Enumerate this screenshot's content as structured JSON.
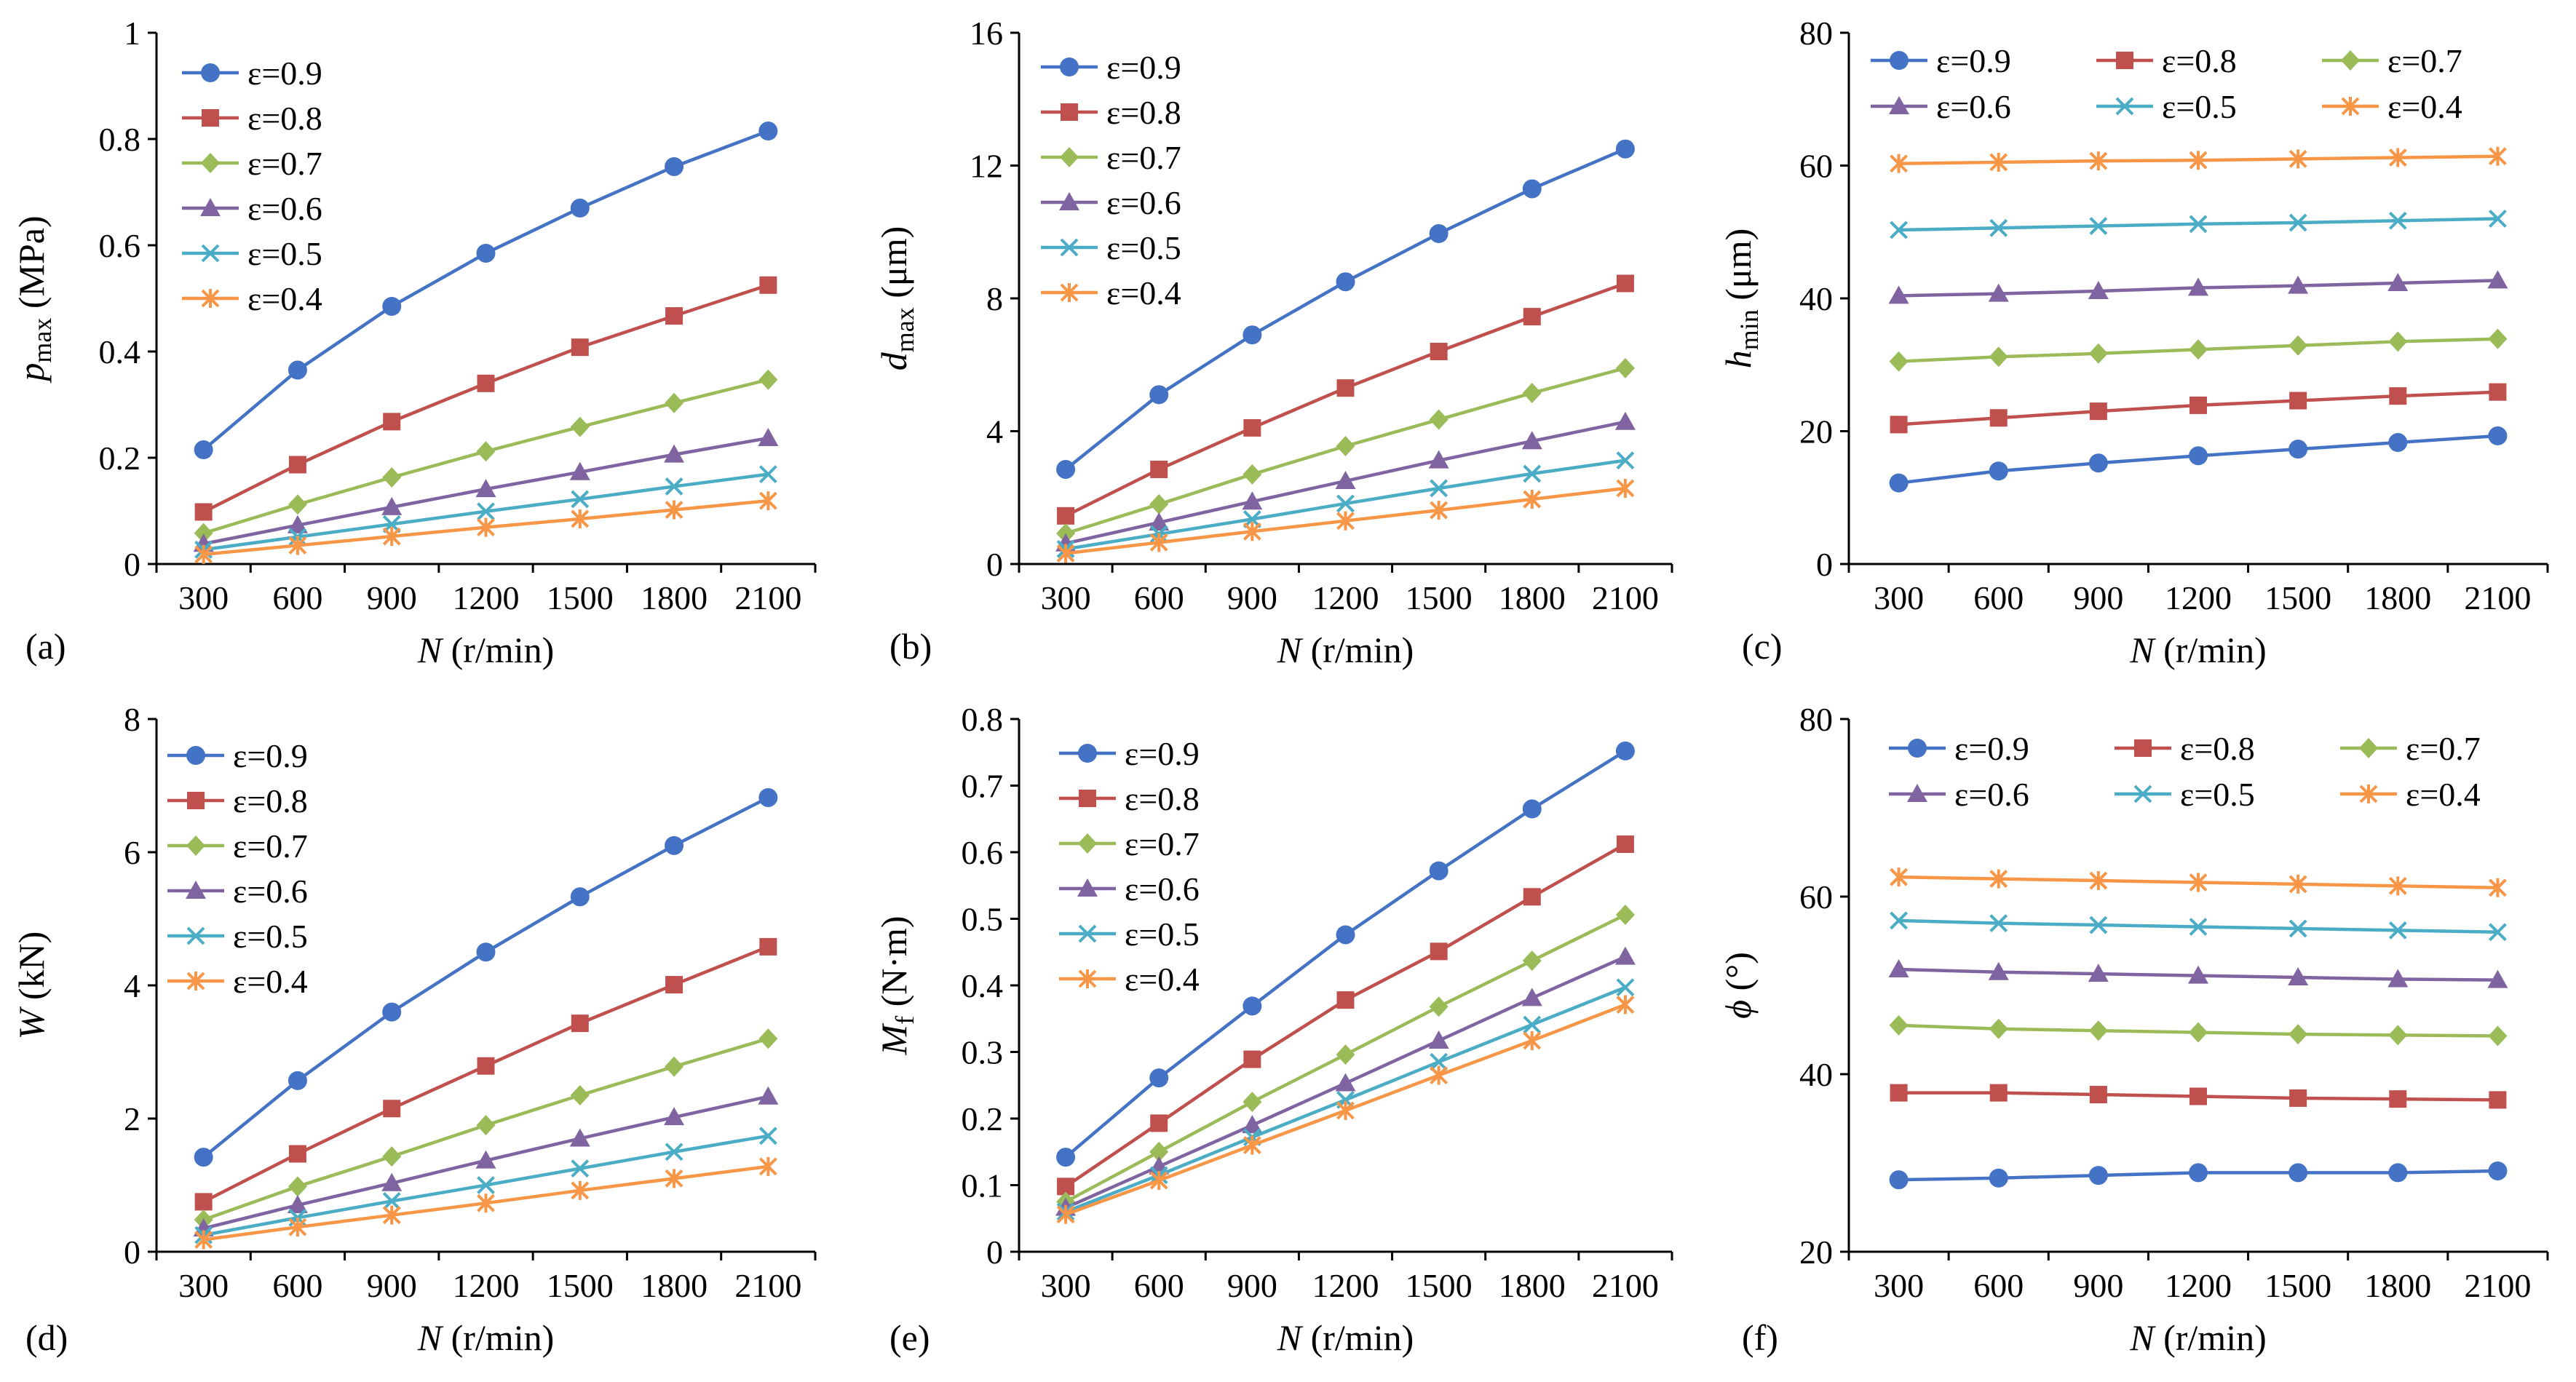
{
  "colors": {
    "e09": "#4472C4",
    "e08": "#C0504D",
    "e07": "#9BBB59",
    "e06": "#8064A2",
    "e05": "#4BACC6",
    "e04": "#F79646",
    "axis": "#000000"
  },
  "chart_data": [
    {
      "type": "line",
      "panel_label": "(a)",
      "categories": [
        "300",
        "600",
        "900",
        "1200",
        "1500",
        "1800",
        "2100"
      ],
      "xlabel": {
        "italic": "N",
        "rest": " (r/min)"
      },
      "ylabel": {
        "italic": "p",
        "sub": "max",
        "rest": " (MPa)"
      },
      "ylim": [
        0,
        1
      ],
      "yticks": [
        {
          "v": 0,
          "label": "0"
        },
        {
          "v": 0.2,
          "label": "0.2"
        },
        {
          "v": 0.4,
          "label": "0.4"
        },
        {
          "v": 0.6,
          "label": "0.6"
        },
        {
          "v": 0.8,
          "label": "0.8"
        },
        {
          "v": 1,
          "label": "1"
        }
      ],
      "legend_placement": "top-left",
      "grid": false,
      "series": [
        {
          "name": "ε=0.9",
          "marker": "circle",
          "color": "#4472C4",
          "values": [
            0.215,
            0.365,
            0.485,
            0.585,
            0.67,
            0.748,
            0.815
          ]
        },
        {
          "name": "ε=0.8",
          "marker": "square",
          "color": "#C0504D",
          "values": [
            0.098,
            0.187,
            0.268,
            0.34,
            0.408,
            0.467,
            0.525
          ]
        },
        {
          "name": "ε=0.7",
          "marker": "diamond",
          "color": "#9BBB59",
          "values": [
            0.058,
            0.112,
            0.163,
            0.212,
            0.258,
            0.303,
            0.347
          ]
        },
        {
          "name": "ε=0.6",
          "marker": "triangle",
          "color": "#8064A2",
          "values": [
            0.038,
            0.073,
            0.107,
            0.141,
            0.173,
            0.206,
            0.237
          ]
        },
        {
          "name": "ε=0.5",
          "marker": "x",
          "color": "#4BACC6",
          "values": [
            0.027,
            0.051,
            0.075,
            0.099,
            0.122,
            0.146,
            0.169
          ]
        },
        {
          "name": "ε=0.4",
          "marker": "star",
          "color": "#F79646",
          "values": [
            0.018,
            0.035,
            0.052,
            0.069,
            0.085,
            0.102,
            0.119
          ]
        }
      ]
    },
    {
      "type": "line",
      "panel_label": "(b)",
      "categories": [
        "300",
        "600",
        "900",
        "1200",
        "1500",
        "1800",
        "2100"
      ],
      "xlabel": {
        "italic": "N",
        "rest": " (r/min)"
      },
      "ylabel": {
        "italic": "d",
        "sub": "max",
        "rest": " (μm)"
      },
      "ylim": [
        0,
        16
      ],
      "yticks": [
        {
          "v": 0,
          "label": "0"
        },
        {
          "v": 4,
          "label": "4"
        },
        {
          "v": 8,
          "label": "8"
        },
        {
          "v": 12,
          "label": "12"
        },
        {
          "v": 16,
          "label": "16"
        }
      ],
      "legend_placement": "top-left",
      "grid": false,
      "series": [
        {
          "name": "ε=0.9",
          "marker": "circle",
          "color": "#4472C4",
          "values": [
            2.85,
            5.1,
            6.9,
            8.5,
            9.95,
            11.3,
            12.5
          ]
        },
        {
          "name": "ε=0.8",
          "marker": "square",
          "color": "#C0504D",
          "values": [
            1.45,
            2.85,
            4.1,
            5.3,
            6.4,
            7.45,
            8.45
          ]
        },
        {
          "name": "ε=0.7",
          "marker": "diamond",
          "color": "#9BBB59",
          "values": [
            0.92,
            1.8,
            2.7,
            3.55,
            4.35,
            5.15,
            5.9
          ]
        },
        {
          "name": "ε=0.6",
          "marker": "triangle",
          "color": "#8064A2",
          "values": [
            0.62,
            1.25,
            1.88,
            2.5,
            3.12,
            3.7,
            4.28
          ]
        },
        {
          "name": "ε=0.5",
          "marker": "x",
          "color": "#4BACC6",
          "values": [
            0.45,
            0.9,
            1.35,
            1.82,
            2.28,
            2.72,
            3.12
          ]
        },
        {
          "name": "ε=0.4",
          "marker": "star",
          "color": "#F79646",
          "values": [
            0.32,
            0.65,
            0.98,
            1.3,
            1.62,
            1.95,
            2.28
          ]
        }
      ]
    },
    {
      "type": "line",
      "panel_label": "(c)",
      "categories": [
        "300",
        "600",
        "900",
        "1200",
        "1500",
        "1800",
        "2100"
      ],
      "xlabel": {
        "italic": "N",
        "rest": " (r/min)"
      },
      "ylabel": {
        "italic": "h",
        "sub": "min",
        "rest": " (μm)"
      },
      "ylim": [
        0,
        80
      ],
      "yticks": [
        {
          "v": 0,
          "label": "0"
        },
        {
          "v": 20,
          "label": "20"
        },
        {
          "v": 40,
          "label": "40"
        },
        {
          "v": 60,
          "label": "60"
        },
        {
          "v": 80,
          "label": "80"
        }
      ],
      "legend_placement": "top",
      "grid": false,
      "series": [
        {
          "name": "ε=0.9",
          "marker": "circle",
          "color": "#4472C4",
          "values": [
            12.2,
            14.0,
            15.2,
            16.3,
            17.3,
            18.3,
            19.3
          ]
        },
        {
          "name": "ε=0.8",
          "marker": "square",
          "color": "#C0504D",
          "values": [
            21.0,
            22.0,
            23.0,
            23.9,
            24.6,
            25.3,
            25.9
          ]
        },
        {
          "name": "ε=0.7",
          "marker": "diamond",
          "color": "#9BBB59",
          "values": [
            30.5,
            31.2,
            31.7,
            32.3,
            32.9,
            33.5,
            33.9
          ]
        },
        {
          "name": "ε=0.6",
          "marker": "triangle",
          "color": "#8064A2",
          "values": [
            40.4,
            40.7,
            41.1,
            41.6,
            41.9,
            42.3,
            42.7
          ]
        },
        {
          "name": "ε=0.5",
          "marker": "x",
          "color": "#4BACC6",
          "values": [
            50.3,
            50.6,
            50.9,
            51.2,
            51.4,
            51.7,
            52.0
          ]
        },
        {
          "name": "ε=0.4",
          "marker": "star",
          "color": "#F79646",
          "values": [
            60.3,
            60.5,
            60.7,
            60.8,
            61.0,
            61.2,
            61.4
          ]
        }
      ]
    },
    {
      "type": "line",
      "panel_label": "(d)",
      "categories": [
        "300",
        "600",
        "900",
        "1200",
        "1500",
        "1800",
        "2100"
      ],
      "xlabel": {
        "italic": "N",
        "rest": " (r/min)"
      },
      "ylabel": {
        "italic": "W",
        "sub": "",
        "rest": " (kN)"
      },
      "ylim": [
        0,
        8
      ],
      "yticks": [
        {
          "v": 0,
          "label": "0"
        },
        {
          "v": 2,
          "label": "2"
        },
        {
          "v": 4,
          "label": "4"
        },
        {
          "v": 6,
          "label": "6"
        },
        {
          "v": 8,
          "label": "8"
        }
      ],
      "legend_placement": "top-left",
      "grid": false,
      "series": [
        {
          "name": "ε=0.9",
          "marker": "circle",
          "color": "#4472C4",
          "values": [
            1.42,
            2.57,
            3.6,
            4.5,
            5.33,
            6.1,
            6.82
          ]
        },
        {
          "name": "ε=0.8",
          "marker": "square",
          "color": "#C0504D",
          "values": [
            0.75,
            1.47,
            2.15,
            2.79,
            3.43,
            4.01,
            4.58
          ]
        },
        {
          "name": "ε=0.7",
          "marker": "diamond",
          "color": "#9BBB59",
          "values": [
            0.48,
            0.98,
            1.43,
            1.9,
            2.35,
            2.78,
            3.2
          ]
        },
        {
          "name": "ε=0.6",
          "marker": "triangle",
          "color": "#8064A2",
          "values": [
            0.35,
            0.7,
            1.03,
            1.37,
            1.7,
            2.02,
            2.33
          ]
        },
        {
          "name": "ε=0.5",
          "marker": "x",
          "color": "#4BACC6",
          "values": [
            0.25,
            0.51,
            0.76,
            1.0,
            1.25,
            1.5,
            1.74
          ]
        },
        {
          "name": "ε=0.4",
          "marker": "star",
          "color": "#F79646",
          "values": [
            0.18,
            0.37,
            0.55,
            0.73,
            0.92,
            1.1,
            1.28
          ]
        }
      ]
    },
    {
      "type": "line",
      "panel_label": "(e)",
      "categories": [
        "300",
        "600",
        "900",
        "1200",
        "1500",
        "1800",
        "2100"
      ],
      "xlabel": {
        "italic": "N",
        "rest": " (r/min)"
      },
      "ylabel": {
        "italic": "M",
        "sub": "f",
        "rest": " (N·m)"
      },
      "ylim": [
        0,
        0.8
      ],
      "yticks": [
        {
          "v": 0,
          "label": "0"
        },
        {
          "v": 0.1,
          "label": "0.1"
        },
        {
          "v": 0.2,
          "label": "0.2"
        },
        {
          "v": 0.3,
          "label": "0.3"
        },
        {
          "v": 0.4,
          "label": "0.4"
        },
        {
          "v": 0.5,
          "label": "0.5"
        },
        {
          "v": 0.6,
          "label": "0.6"
        },
        {
          "v": 0.7,
          "label": "0.7"
        },
        {
          "v": 0.8,
          "label": "0.8"
        }
      ],
      "legend_placement": "top-left",
      "grid": false,
      "series": [
        {
          "name": "ε=0.9",
          "marker": "circle",
          "color": "#4472C4",
          "values": [
            0.142,
            0.261,
            0.369,
            0.476,
            0.572,
            0.665,
            0.752
          ]
        },
        {
          "name": "ε=0.8",
          "marker": "square",
          "color": "#C0504D",
          "values": [
            0.098,
            0.193,
            0.289,
            0.378,
            0.451,
            0.533,
            0.612
          ]
        },
        {
          "name": "ε=0.7",
          "marker": "diamond",
          "color": "#9BBB59",
          "values": [
            0.075,
            0.15,
            0.225,
            0.296,
            0.368,
            0.437,
            0.506
          ]
        },
        {
          "name": "ε=0.6",
          "marker": "triangle",
          "color": "#8064A2",
          "values": [
            0.066,
            0.128,
            0.19,
            0.253,
            0.317,
            0.381,
            0.443
          ]
        },
        {
          "name": "ε=0.5",
          "marker": "x",
          "color": "#4BACC6",
          "values": [
            0.06,
            0.115,
            0.172,
            0.228,
            0.285,
            0.341,
            0.397
          ]
        },
        {
          "name": "ε=0.4",
          "marker": "star",
          "color": "#F79646",
          "values": [
            0.056,
            0.107,
            0.16,
            0.212,
            0.265,
            0.317,
            0.371
          ]
        }
      ]
    },
    {
      "type": "line",
      "panel_label": "(f)",
      "categories": [
        "300",
        "600",
        "900",
        "1200",
        "1500",
        "1800",
        "2100"
      ],
      "xlabel": {
        "italic": "N",
        "rest": " (r/min)"
      },
      "ylabel": {
        "italic": "ϕ",
        "sub": "",
        "rest": " (°)"
      },
      "ylim": [
        20,
        80
      ],
      "yticks": [
        {
          "v": 20,
          "label": "20"
        },
        {
          "v": 40,
          "label": "40"
        },
        {
          "v": 60,
          "label": "60"
        },
        {
          "v": 80,
          "label": "80"
        }
      ],
      "legend_placement": "top",
      "grid": false,
      "series": [
        {
          "name": "ε=0.9",
          "marker": "circle",
          "color": "#4472C4",
          "values": [
            28.1,
            28.3,
            28.6,
            28.9,
            28.9,
            28.9,
            29.1
          ]
        },
        {
          "name": "ε=0.8",
          "marker": "square",
          "color": "#C0504D",
          "values": [
            37.9,
            37.9,
            37.7,
            37.5,
            37.3,
            37.2,
            37.1
          ]
        },
        {
          "name": "ε=0.7",
          "marker": "diamond",
          "color": "#9BBB59",
          "values": [
            45.5,
            45.1,
            44.9,
            44.7,
            44.5,
            44.4,
            44.3
          ]
        },
        {
          "name": "ε=0.6",
          "marker": "triangle",
          "color": "#8064A2",
          "values": [
            51.8,
            51.5,
            51.3,
            51.1,
            50.9,
            50.7,
            50.6
          ]
        },
        {
          "name": "ε=0.5",
          "marker": "x",
          "color": "#4BACC6",
          "values": [
            57.3,
            57.0,
            56.8,
            56.6,
            56.4,
            56.2,
            56.0
          ]
        },
        {
          "name": "ε=0.4",
          "marker": "star",
          "color": "#F79646",
          "values": [
            62.2,
            62.0,
            61.8,
            61.6,
            61.4,
            61.2,
            61.0
          ]
        }
      ]
    }
  ]
}
